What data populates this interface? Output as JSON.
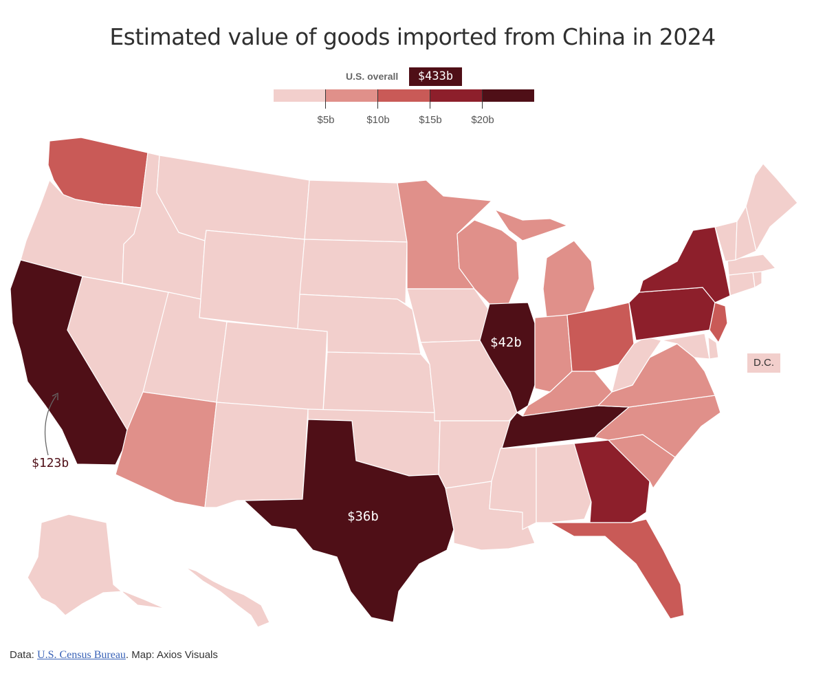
{
  "title": "Estimated value of goods imported from China in 2024",
  "overall": {
    "label": "U.S. overall",
    "value": "$433b"
  },
  "legend": {
    "ticks": [
      "$5b",
      "$10b",
      "$15b",
      "$20b"
    ],
    "colors": [
      "#f2cfcc",
      "#e0908a",
      "#c95a57",
      "#8d1f2b",
      "#4f0f17"
    ]
  },
  "annotations": {
    "california": "$123b",
    "illinois": "$42b",
    "texas": "$36b",
    "dc": "D.C."
  },
  "footer": {
    "prefix": "Data: ",
    "source": "U.S. Census Bureau",
    "suffix": ". Map: Axios Visuals"
  },
  "states": [
    {
      "id": "WA",
      "bin": 2
    },
    {
      "id": "OR",
      "bin": 0
    },
    {
      "id": "CA",
      "bin": 4
    },
    {
      "id": "NV",
      "bin": 0
    },
    {
      "id": "ID",
      "bin": 0
    },
    {
      "id": "MT",
      "bin": 0
    },
    {
      "id": "WY",
      "bin": 0
    },
    {
      "id": "UT",
      "bin": 0
    },
    {
      "id": "AZ",
      "bin": 1
    },
    {
      "id": "CO",
      "bin": 0
    },
    {
      "id": "NM",
      "bin": 0
    },
    {
      "id": "ND",
      "bin": 0
    },
    {
      "id": "SD",
      "bin": 0
    },
    {
      "id": "NE",
      "bin": 0
    },
    {
      "id": "KS",
      "bin": 0
    },
    {
      "id": "OK",
      "bin": 0
    },
    {
      "id": "TX",
      "bin": 4
    },
    {
      "id": "MN",
      "bin": 1
    },
    {
      "id": "IA",
      "bin": 0
    },
    {
      "id": "MO",
      "bin": 0
    },
    {
      "id": "AR",
      "bin": 0
    },
    {
      "id": "LA",
      "bin": 0
    },
    {
      "id": "WI",
      "bin": 1
    },
    {
      "id": "IL",
      "bin": 4
    },
    {
      "id": "MI",
      "bin": 1
    },
    {
      "id": "IN",
      "bin": 1
    },
    {
      "id": "OH",
      "bin": 2
    },
    {
      "id": "KY",
      "bin": 1
    },
    {
      "id": "TN",
      "bin": 4
    },
    {
      "id": "MS",
      "bin": 0
    },
    {
      "id": "AL",
      "bin": 0
    },
    {
      "id": "GA",
      "bin": 3
    },
    {
      "id": "FL",
      "bin": 2
    },
    {
      "id": "SC",
      "bin": 1
    },
    {
      "id": "NC",
      "bin": 1
    },
    {
      "id": "VA",
      "bin": 1
    },
    {
      "id": "WV",
      "bin": 0
    },
    {
      "id": "PA",
      "bin": 3
    },
    {
      "id": "NY",
      "bin": 3
    },
    {
      "id": "NJ",
      "bin": 2
    },
    {
      "id": "DE",
      "bin": 0
    },
    {
      "id": "MD",
      "bin": 0
    },
    {
      "id": "CT",
      "bin": 0
    },
    {
      "id": "RI",
      "bin": 0
    },
    {
      "id": "MA",
      "bin": 0
    },
    {
      "id": "VT",
      "bin": 0
    },
    {
      "id": "NH",
      "bin": 0
    },
    {
      "id": "ME",
      "bin": 0
    },
    {
      "id": "AK",
      "bin": 0
    },
    {
      "id": "HI",
      "bin": 0
    },
    {
      "id": "DC",
      "bin": 0
    }
  ]
}
